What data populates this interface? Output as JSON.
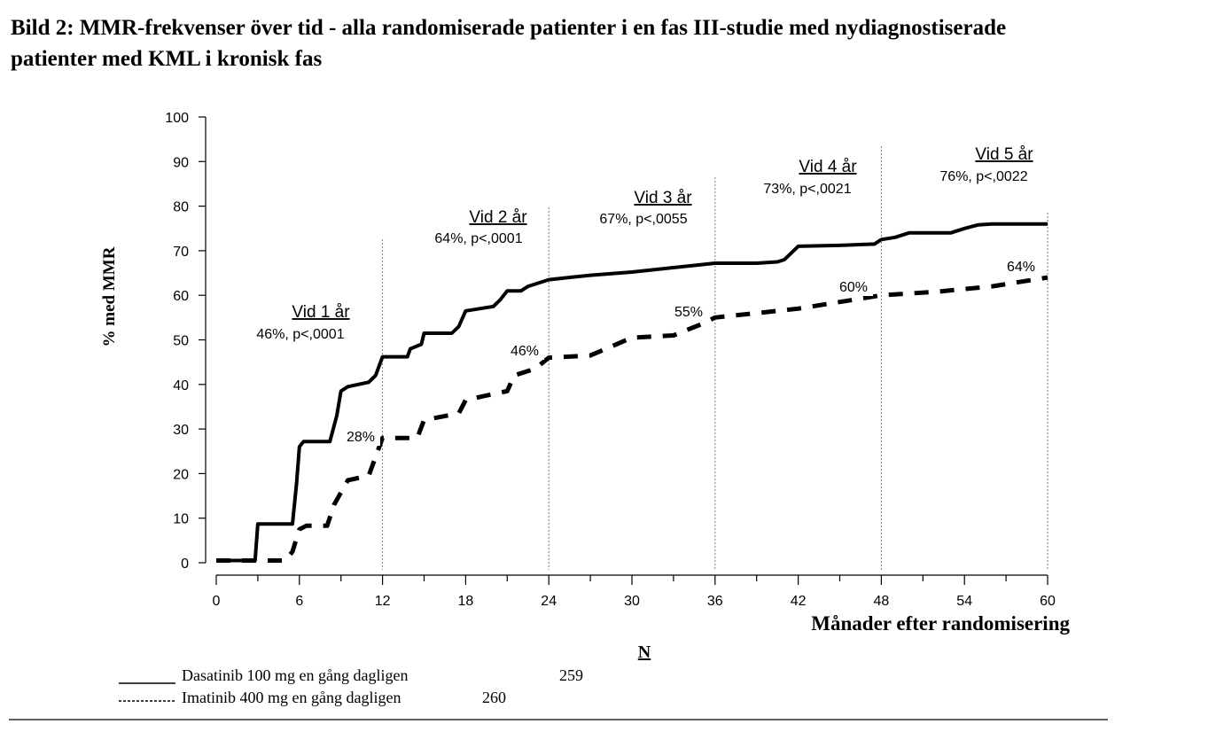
{
  "title": {
    "line1": "Bild 2: MMR-frekvenser över tid - alla randomiserade patienter i en fas III-studie med nydiagnostiserade",
    "line2": "patienter med KML i kronisk fas"
  },
  "chart_data": {
    "type": "line",
    "xlabel": "Månader efter randomisering",
    "ylabel": "% med MMR",
    "xlim": [
      0,
      60
    ],
    "ylim": [
      0,
      100
    ],
    "x_ticks": [
      0,
      6,
      12,
      18,
      24,
      30,
      36,
      42,
      48,
      54,
      60
    ],
    "y_ticks": [
      0,
      10,
      20,
      30,
      40,
      50,
      60,
      70,
      80,
      90,
      100
    ],
    "milestones": [
      12,
      24,
      36,
      48,
      60
    ],
    "series": [
      {
        "name": "Dasatinib 100 mg en gång dagligen",
        "n": "259",
        "style": "solid",
        "x": [
          0,
          2.8,
          3.0,
          5.5,
          5.8,
          6.0,
          6.3,
          8.2,
          8.7,
          9.0,
          9.5,
          11.0,
          11.5,
          12.0,
          13.8,
          14.0,
          14.8,
          15.0,
          17.0,
          17.5,
          18.0,
          20.0,
          20.5,
          21.0,
          22.0,
          22.5,
          24.0,
          27.0,
          30.0,
          36.0,
          39.0,
          40.5,
          41.0,
          42.0,
          45.0,
          47.5,
          48.0,
          49.0,
          50.0,
          53.0,
          54.0,
          55.0,
          56.0,
          60.0
        ],
        "y": [
          0.5,
          0.5,
          8.7,
          8.7,
          18,
          26,
          27.2,
          27.2,
          33,
          38.5,
          39.5,
          40.5,
          42,
          46.2,
          46.2,
          48,
          49,
          51.5,
          51.5,
          53,
          56.5,
          57.5,
          59,
          61,
          61,
          62,
          63.5,
          64.5,
          65.2,
          67.2,
          67.2,
          67.5,
          68,
          71,
          71.2,
          71.5,
          72.5,
          73,
          74,
          74,
          75,
          75.8,
          76,
          76
        ]
      },
      {
        "name": "Imatinib 400 mg en gång dagligen",
        "n": "260",
        "style": "dashed",
        "x": [
          0,
          5.0,
          5.5,
          6.0,
          6.5,
          8.0,
          8.5,
          9.5,
          11.0,
          12.0,
          14.5,
          15.0,
          17.5,
          18.0,
          21.0,
          21.5,
          23.0,
          24.0,
          27.0,
          30.0,
          33.0,
          35.0,
          36.0,
          42.0,
          48.0,
          52.0,
          56.0,
          60.0
        ],
        "y": [
          0.5,
          0.5,
          2.5,
          7.5,
          8.3,
          8.3,
          13,
          18.5,
          19.5,
          28,
          28,
          32,
          33.5,
          36.5,
          38.5,
          42,
          43.5,
          46,
          46.5,
          50.5,
          51,
          53.5,
          55,
          57,
          60,
          60.8,
          62,
          64
        ]
      }
    ],
    "annotations": [
      {
        "heading": "Vid 1 år",
        "text": "46%, p<,0001"
      },
      {
        "heading": "Vid 2 år",
        "text": "64%, p<,0001"
      },
      {
        "heading": "Vid 3 år",
        "text": "67%, p<,0055"
      },
      {
        "heading": "Vid 4 år",
        "text": "73%, p<,0021"
      },
      {
        "heading": "Vid 5 år",
        "text": "76%, p<,0022"
      }
    ],
    "imatinib_labels": [
      "28%",
      "46%",
      "55%",
      "60%",
      "64%"
    ]
  },
  "legend": {
    "n_header": "N"
  }
}
